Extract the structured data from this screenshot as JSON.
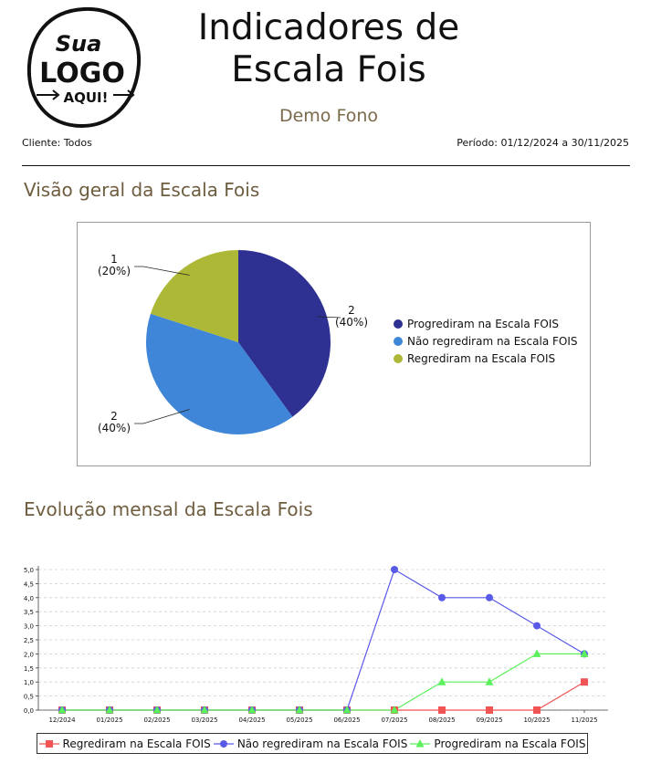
{
  "header": {
    "logo": {
      "line1": "Sua",
      "line2": "LOGO",
      "line3": "AQUI!"
    },
    "title_line1": "Indicadores de",
    "title_line2": "Escala Fois",
    "subtitle": "Demo Fono",
    "client": "Cliente: Todos",
    "period": "Período: 01/12/2024 a 30/11/2025"
  },
  "sections": {
    "overview_title": "Visão geral da Escala Fois",
    "monthly_title": "Evolução mensal da Escala Fois"
  },
  "chart_data": [
    {
      "type": "pie",
      "labels": [
        "Progrediram na Escala FOIS",
        "Não regrediram na Escala FOIS",
        "Regrediram na Escala FOIS"
      ],
      "values": [
        2,
        2,
        1
      ],
      "percent_labels": [
        "(40%)",
        "(40%)",
        "(20%)"
      ],
      "colors": [
        "#2e3192",
        "#3f86d8",
        "#adb836"
      ],
      "legend": "right"
    },
    {
      "type": "line",
      "categories": [
        "12/2024",
        "01/2025",
        "02/2025",
        "03/2025",
        "04/2025",
        "05/2025",
        "06/2025",
        "07/2025",
        "08/2025",
        "09/2025",
        "10/2025",
        "11/2025"
      ],
      "series": [
        {
          "name": "Regrediram na Escala FOIS",
          "values": [
            0,
            0,
            0,
            0,
            0,
            0,
            0,
            0,
            0,
            0,
            0,
            1
          ],
          "color": "#f05454",
          "marker": "square"
        },
        {
          "name": "Não regrediram na Escala FOIS",
          "values": [
            0,
            0,
            0,
            0,
            0,
            0,
            0,
            5,
            4,
            4,
            3,
            2
          ],
          "color": "#5a5ae8",
          "marker": "circle"
        },
        {
          "name": "Progrediram na Escala FOIS",
          "values": [
            0,
            0,
            0,
            0,
            0,
            0,
            0,
            0,
            1,
            1,
            2,
            2
          ],
          "color": "#5cf05c",
          "marker": "triangle"
        }
      ],
      "ylim": [
        0,
        5
      ],
      "yticks": [
        "0,0",
        "0,5",
        "1,0",
        "1,5",
        "2,0",
        "2,5",
        "3,0",
        "3,5",
        "4,0",
        "4,5",
        "5,0"
      ],
      "grid": true,
      "legend": "bottom"
    }
  ]
}
